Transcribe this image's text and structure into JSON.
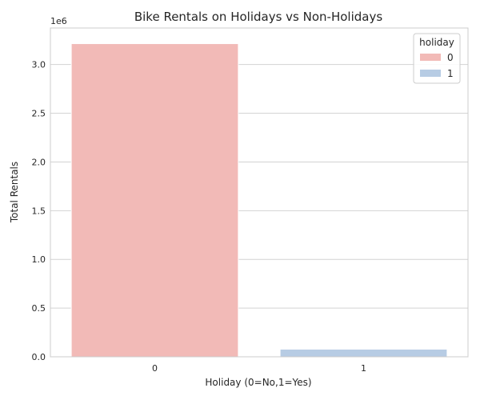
{
  "chart_data": {
    "type": "bar",
    "title": "Bike Rentals on Holidays vs Non-Holidays",
    "xlabel": "Holiday (0=No,1=Yes)",
    "ylabel": "Total Rentals",
    "y_offset_text": "1e6",
    "categories": [
      "0",
      "1"
    ],
    "values": [
      3214244,
      78435
    ],
    "bar_colors": [
      "#f2bab7",
      "#b7cce4"
    ],
    "ylim": [
      0,
      3374956
    ],
    "yticks": [
      0.0,
      0.5,
      1.0,
      1.5,
      2.0,
      2.5,
      3.0
    ],
    "ytick_labels": [
      "0.0",
      "0.5",
      "1.0",
      "1.5",
      "2.0",
      "2.5",
      "3.0"
    ],
    "grid": "horizontal",
    "legend": {
      "title": "holiday",
      "position": "top-right",
      "entries": [
        {
          "label": "0",
          "color": "#f2bab7"
        },
        {
          "label": "1",
          "color": "#b7cce4"
        }
      ]
    }
  }
}
